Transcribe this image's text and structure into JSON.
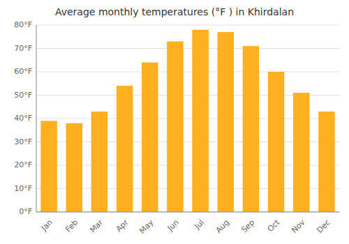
{
  "chart_data": {
    "type": "bar",
    "title": "Average monthly temperatures (°F ) in Khirdalan",
    "categories": [
      "Jan",
      "Feb",
      "Mar",
      "Apr",
      "May",
      "Jun",
      "Jul",
      "Aug",
      "Sep",
      "Oct",
      "Nov",
      "Dec"
    ],
    "values": [
      39,
      38,
      43,
      54,
      64,
      73,
      78,
      77,
      71,
      60,
      51,
      43
    ],
    "color": "#FFB020",
    "ylim": [
      0,
      80
    ],
    "yticks": [
      {
        "value": 0,
        "label": "0°F"
      },
      {
        "value": 10,
        "label": "10°F"
      },
      {
        "value": 20,
        "label": "20°F"
      },
      {
        "value": 30,
        "label": "30°F"
      },
      {
        "value": 40,
        "label": "40°F"
      },
      {
        "value": 50,
        "label": "50°F"
      },
      {
        "value": 60,
        "label": "60°F"
      },
      {
        "value": 70,
        "label": "70°F"
      },
      {
        "value": 80,
        "label": "80°F"
      }
    ],
    "grid": true
  }
}
